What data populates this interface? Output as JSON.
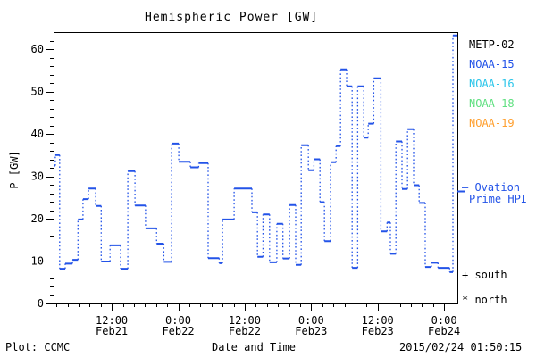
{
  "chart_data": {
    "type": "line",
    "style": "steps: solid horizontal segments joined by dotted vertical connectors",
    "title": "Hemispheric Power [GW]",
    "xlabel": "Date and Time",
    "ylabel": "P [GW]",
    "ylim": [
      0,
      64
    ],
    "y_major_ticks": [
      0,
      10,
      20,
      30,
      40,
      50,
      60
    ],
    "y_minor_step": 2,
    "x_axis_hours_range": [
      1.5,
      74.4
    ],
    "x_hours_reference": "hours since Feb21 00:00",
    "x_minor_step_hours": 2,
    "grid": "off",
    "legend_position": "right-outside",
    "series_color": "#2353e8",
    "x_major_ticks": [
      {
        "hour": 12,
        "time": "12:00",
        "date": "Feb21"
      },
      {
        "hour": 24,
        "time": "0:00",
        "date": "Feb22"
      },
      {
        "hour": 36,
        "time": "12:00",
        "date": "Feb22"
      },
      {
        "hour": 48,
        "time": "0:00",
        "date": "Feb23"
      },
      {
        "hour": 60,
        "time": "12:00",
        "date": "Feb23"
      },
      {
        "hour": 72,
        "time": "0:00",
        "date": "Feb24"
      }
    ],
    "end_hour": 74.4,
    "steps_hour_gw": [
      [
        1.5,
        32.5
      ],
      [
        1.8,
        35
      ],
      [
        2.6,
        8.2
      ],
      [
        3.6,
        9.4
      ],
      [
        4.9,
        10.3
      ],
      [
        5.9,
        19.8
      ],
      [
        6.8,
        24.6
      ],
      [
        7.8,
        27.1
      ],
      [
        9.1,
        23
      ],
      [
        10.1,
        9.9
      ],
      [
        11.7,
        13.7
      ],
      [
        13.6,
        8.2
      ],
      [
        14.9,
        31.2
      ],
      [
        16.2,
        23.1
      ],
      [
        18.1,
        17.7
      ],
      [
        20.1,
        14.1
      ],
      [
        21.4,
        9.8
      ],
      [
        22.8,
        37.7
      ],
      [
        24.1,
        33.4
      ],
      [
        26.2,
        32.1
      ],
      [
        27.7,
        33.1
      ],
      [
        29.4,
        10.7
      ],
      [
        31.4,
        9.5
      ],
      [
        32,
        19.8
      ],
      [
        34.1,
        27.1
      ],
      [
        37.3,
        21.5
      ],
      [
        38.3,
        11
      ],
      [
        39.3,
        21
      ],
      [
        40.5,
        9.7
      ],
      [
        41.8,
        18.8
      ],
      [
        42.9,
        10.6
      ],
      [
        44.1,
        23.2
      ],
      [
        45.2,
        9.1
      ],
      [
        46.2,
        37.3
      ],
      [
        47.5,
        31.4
      ],
      [
        48.5,
        34
      ],
      [
        49.6,
        23.9
      ],
      [
        50.4,
        14.7
      ],
      [
        51.5,
        33.3
      ],
      [
        52.5,
        37.1
      ],
      [
        53.3,
        55.2
      ],
      [
        54.4,
        51.2
      ],
      [
        55.4,
        8.4
      ],
      [
        56.4,
        51.2
      ],
      [
        57.5,
        39.1
      ],
      [
        58.3,
        42.4
      ],
      [
        59.3,
        53.1
      ],
      [
        60.6,
        17
      ],
      [
        61.7,
        19.1
      ],
      [
        62.3,
        11.7
      ],
      [
        63.3,
        38.2
      ],
      [
        64.4,
        27
      ],
      [
        65.4,
        41.1
      ],
      [
        66.5,
        27.9
      ],
      [
        67.5,
        23.7
      ],
      [
        68.6,
        8.6
      ],
      [
        69.7,
        9.6
      ],
      [
        70.9,
        8.4
      ],
      [
        73,
        7.4
      ],
      [
        73.6,
        63.2
      ]
    ]
  },
  "legend": [
    {
      "label": "METP-02",
      "color": "#000000"
    },
    {
      "label": "NOAA-15",
      "color": "#2353e8"
    },
    {
      "label": "NOAA-16",
      "color": "#29c5ea"
    },
    {
      "label": "NOAA-18",
      "color": "#5fe080"
    },
    {
      "label": "NOAA-19",
      "color": "#ff9f2e"
    }
  ],
  "annotations": {
    "ovation_line1": "– Ovation",
    "ovation_line2": "Prime HPI",
    "south": "+ south",
    "north": "* north"
  },
  "footer": {
    "left": "Plot: CCMC",
    "right": "2015/02/24 01:50:15"
  }
}
